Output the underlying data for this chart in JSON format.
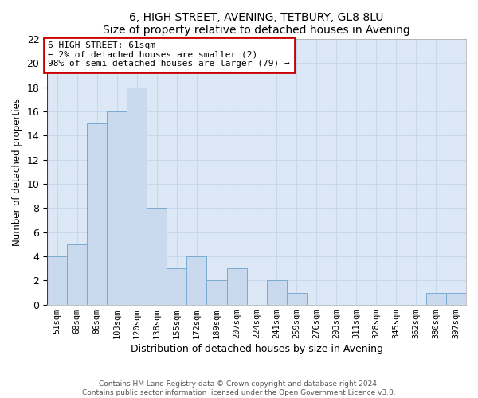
{
  "title1": "6, HIGH STREET, AVENING, TETBURY, GL8 8LU",
  "title2": "Size of property relative to detached houses in Avening",
  "xlabel": "Distribution of detached houses by size in Avening",
  "ylabel": "Number of detached properties",
  "categories": [
    "51sqm",
    "68sqm",
    "86sqm",
    "103sqm",
    "120sqm",
    "138sqm",
    "155sqm",
    "172sqm",
    "189sqm",
    "207sqm",
    "224sqm",
    "241sqm",
    "259sqm",
    "276sqm",
    "293sqm",
    "311sqm",
    "328sqm",
    "345sqm",
    "362sqm",
    "380sqm",
    "397sqm"
  ],
  "values": [
    4,
    5,
    15,
    16,
    18,
    8,
    3,
    4,
    2,
    3,
    0,
    2,
    1,
    0,
    0,
    0,
    0,
    0,
    0,
    1,
    1
  ],
  "bar_color": "#c9d9ee",
  "bar_edge_color": "#7aaad0",
  "ylim": [
    0,
    22
  ],
  "yticks": [
    0,
    2,
    4,
    6,
    8,
    10,
    12,
    14,
    16,
    18,
    20,
    22
  ],
  "annotation_box_text": "6 HIGH STREET: 61sqm\n← 2% of detached houses are smaller (2)\n98% of semi-detached houses are larger (79) →",
  "annotation_box_color": "#ffffff",
  "annotation_box_edge_color": "#cc0000",
  "grid_color": "#c8d8ec",
  "footer1": "Contains HM Land Registry data © Crown copyright and database right 2024.",
  "footer2": "Contains public sector information licensed under the Open Government Licence v3.0.",
  "bg_color": "#dce8f5"
}
